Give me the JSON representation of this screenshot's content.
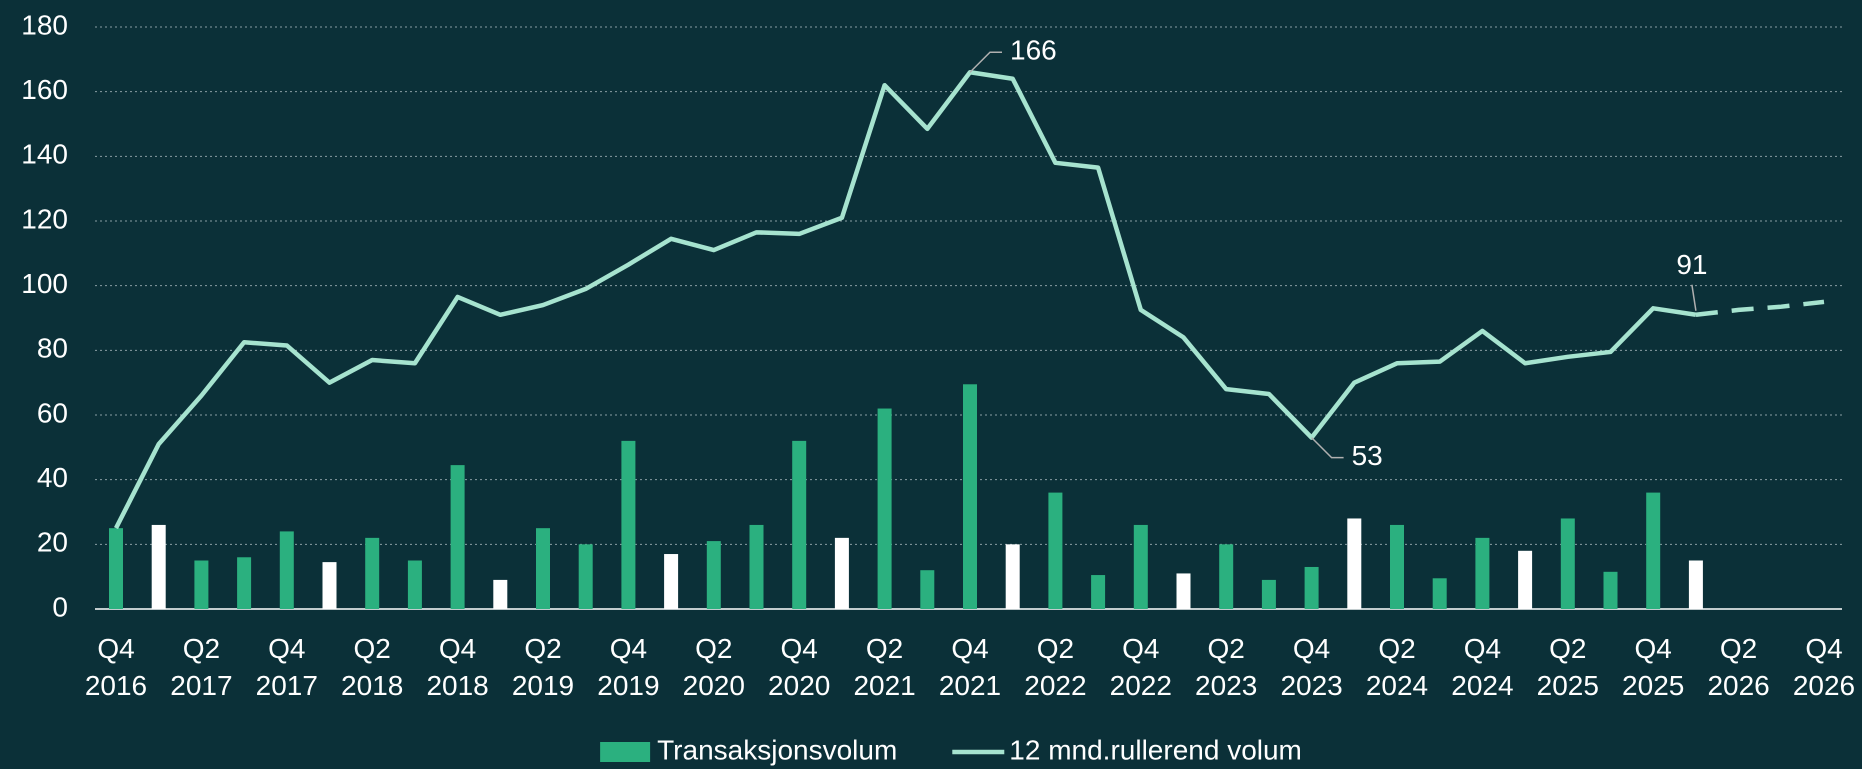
{
  "chart_data": {
    "type": "bar_line",
    "categories": [
      "Q4 2016",
      null,
      "Q2 2017",
      null,
      "Q4 2017",
      null,
      "Q2 2018",
      null,
      "Q4 2018",
      null,
      "Q2 2019",
      null,
      "Q4 2019",
      null,
      "Q2 2020",
      null,
      "Q4 2020",
      null,
      "Q2 2021",
      null,
      "Q4 2021",
      null,
      "Q2 2022",
      null,
      "Q4 2022",
      null,
      "Q2 2023",
      null,
      "Q4 2023",
      null,
      "Q2 2024",
      null,
      "Q4 2024",
      null,
      "Q2 2025",
      null,
      "Q4 2025",
      null,
      "Q2 2026",
      null,
      "Q4 2026"
    ],
    "series": [
      {
        "name": "Transaksjonsvolum",
        "type": "bar",
        "color": "#2bb07f",
        "point_colors": [
          "#2bb07f",
          "#ffffff",
          "#2bb07f",
          "#2bb07f",
          "#2bb07f",
          "#ffffff",
          "#2bb07f",
          "#2bb07f",
          "#2bb07f",
          "#ffffff",
          "#2bb07f",
          "#2bb07f",
          "#2bb07f",
          "#ffffff",
          "#2bb07f",
          "#2bb07f",
          "#2bb07f",
          "#ffffff",
          "#2bb07f",
          "#2bb07f",
          "#2bb07f",
          "#ffffff",
          "#2bb07f",
          "#2bb07f",
          "#2bb07f",
          "#ffffff",
          "#2bb07f",
          "#2bb07f",
          "#2bb07f",
          "#ffffff",
          "#2bb07f",
          "#2bb07f",
          "#2bb07f",
          "#ffffff",
          "#2bb07f",
          "#2bb07f",
          "#2bb07f",
          "#ffffff",
          null,
          null,
          null
        ],
        "values": [
          25,
          26,
          15,
          16,
          24,
          14.5,
          22,
          15,
          44.5,
          9,
          25,
          20,
          52,
          17,
          21,
          26,
          52,
          22,
          62,
          12,
          69.5,
          20,
          36,
          10.5,
          26,
          11,
          20,
          9,
          13,
          28,
          26,
          9.5,
          22,
          18,
          28,
          11.5,
          36,
          15,
          null,
          null,
          null
        ]
      },
      {
        "name": "12 mnd.rullerend volum",
        "type": "line",
        "color": "#a6e3cf",
        "values": [
          25,
          51,
          66,
          82.5,
          81.5,
          70,
          77,
          76,
          96.5,
          91,
          94,
          99,
          106.5,
          114.5,
          111,
          116.5,
          116,
          121,
          162,
          148.5,
          166,
          164,
          138,
          136.5,
          92.5,
          84,
          68,
          66.5,
          53,
          70,
          76,
          76.5,
          86,
          76,
          78,
          79.5,
          93,
          91,
          null,
          null,
          null
        ],
        "value_labels": [
          null,
          null,
          null,
          null,
          null,
          null,
          null,
          null,
          null,
          null,
          null,
          null,
          null,
          null,
          null,
          null,
          null,
          null,
          null,
          null,
          "166",
          null,
          null,
          null,
          null,
          null,
          null,
          null,
          "53",
          null,
          null,
          null,
          null,
          null,
          null,
          null,
          null,
          "91",
          null,
          null,
          null
        ]
      },
      {
        "type": "line",
        "color": "#a6e3cf",
        "dashed": true,
        "values": [
          null,
          null,
          null,
          null,
          null,
          null,
          null,
          null,
          null,
          null,
          null,
          null,
          null,
          null,
          null,
          null,
          null,
          null,
          null,
          null,
          null,
          null,
          null,
          null,
          null,
          null,
          null,
          null,
          null,
          null,
          null,
          null,
          null,
          null,
          null,
          null,
          null,
          91,
          92.5,
          93.5,
          95
        ]
      }
    ],
    "ylim": [
      0,
      180
    ],
    "yticks": [
      0,
      20,
      40,
      60,
      80,
      100,
      120,
      140,
      160,
      180
    ],
    "grid": true,
    "legend": "bottom"
  }
}
